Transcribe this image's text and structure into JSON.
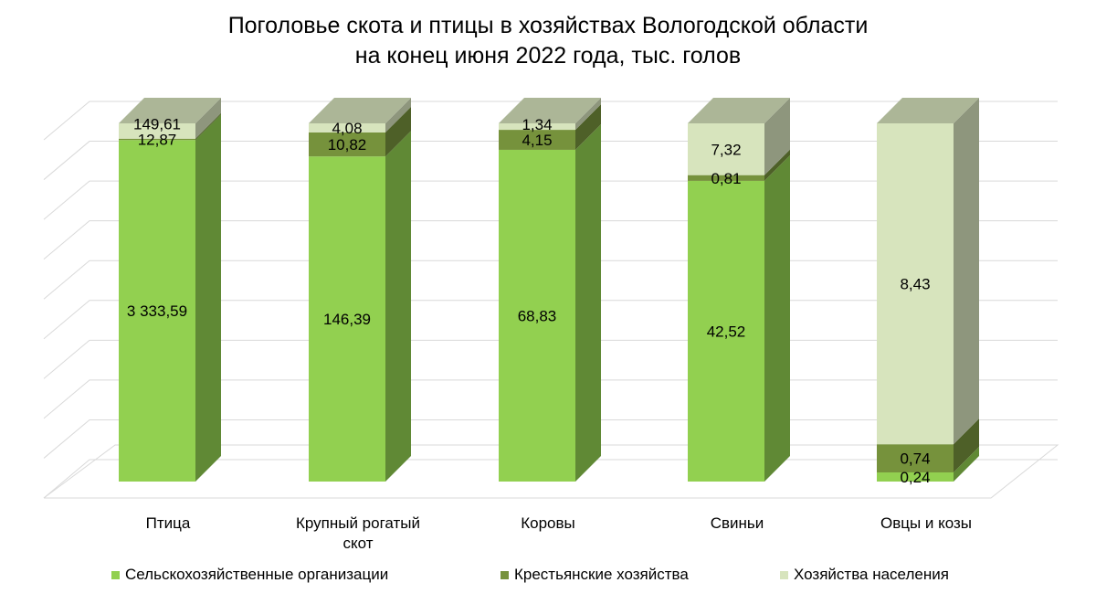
{
  "chart_data": {
    "type": "bar",
    "stacked": true,
    "stacking": "percent",
    "title_line1": "Поголовье скота и птицы в хозяйствах Вологодской области",
    "title_line2": "на конец июня 2022 года, тыс. голов",
    "categories": [
      [
        "Птица"
      ],
      [
        "Крупный рогатый",
        "скот"
      ],
      [
        "Коровы"
      ],
      [
        "Свиньи"
      ],
      [
        "Овцы и козы"
      ]
    ],
    "series": [
      {
        "name": "Сельскохозяйственные организации",
        "color": "#92d050",
        "values": [
          3333.59,
          146.39,
          68.83,
          42.52,
          0.24
        ],
        "labels": [
          "3 333,59",
          "146,39",
          "68,83",
          "42,52",
          "0,24"
        ]
      },
      {
        "name": "Крестьянские хозяйства",
        "color": "#76923c",
        "values": [
          12.87,
          10.82,
          4.15,
          0.81,
          0.74
        ],
        "labels": [
          "12,87",
          "10,82",
          "4,15",
          "0,81",
          "0,74"
        ]
      },
      {
        "name": "Хозяйства населения",
        "color": "#d7e4bd",
        "values": [
          149.61,
          4.08,
          1.34,
          7.32,
          8.43
        ],
        "labels": [
          "149,61",
          "4,08",
          "1,34",
          "7,32",
          "8,43"
        ]
      }
    ],
    "ylim": [
      0,
      100
    ],
    "grid": true,
    "legend": "bottom"
  }
}
